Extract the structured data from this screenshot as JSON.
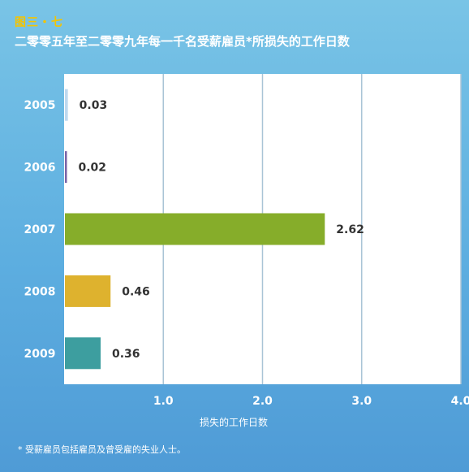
{
  "figure_label": "图三・七",
  "footnote": "* 受薪雇员包括雇员及曾受雇的失业人士。",
  "chart_data": {
    "type": "bar",
    "orientation": "horizontal",
    "title": "二零零五年至二零零九年每一千名受薪雇员*所损失的工作日数",
    "xlabel": "损失的工作日数",
    "ylabel": "",
    "categories": [
      "2005",
      "2006",
      "2007",
      "2008",
      "2009"
    ],
    "values": [
      0.03,
      0.02,
      2.62,
      0.46,
      0.36
    ],
    "value_labels": [
      "0.03",
      "0.02",
      "2.62",
      "0.46",
      "0.36"
    ],
    "bar_colors": [
      "#BFD9EE",
      "#7A63A6",
      "#86AD2A",
      "#DEB22E",
      "#3D9E9F"
    ],
    "xlim": [
      0,
      4.0
    ],
    "xticks": [
      "1.0",
      "2.0",
      "3.0",
      "4.0"
    ],
    "xtick_values": [
      1,
      2,
      3,
      4
    ],
    "grid": true,
    "legend": "none"
  }
}
